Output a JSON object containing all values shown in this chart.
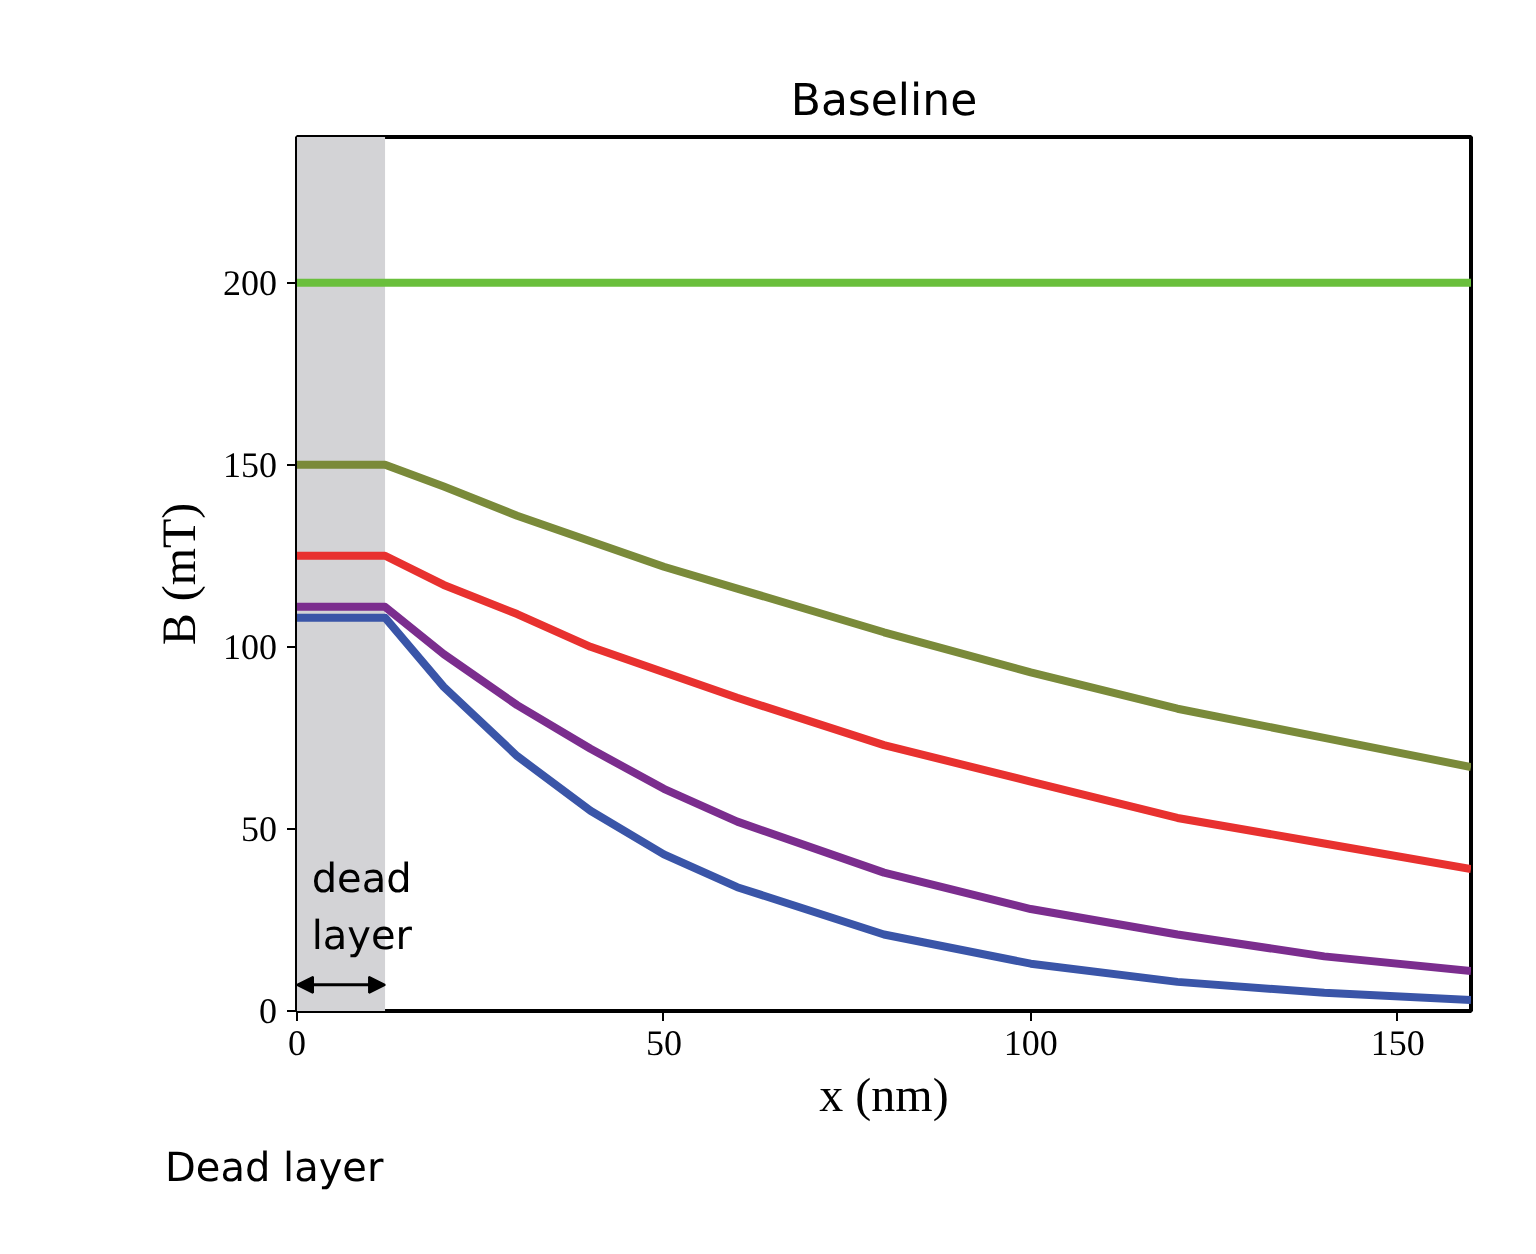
{
  "chart_data": {
    "type": "line",
    "title": "Baseline",
    "xlabel": "x (nm)",
    "ylabel": "B (mT)",
    "x": [
      0,
      12,
      20,
      30,
      40,
      50,
      60,
      80,
      100,
      120,
      140,
      160
    ],
    "series": [
      {
        "color": "#6abf3c",
        "values": [
          200,
          200,
          200,
          200,
          200,
          200,
          200,
          200,
          200,
          200,
          200,
          200
        ]
      },
      {
        "color": "#7a8a3a",
        "values": [
          150,
          150,
          144,
          136,
          129,
          122,
          116,
          104,
          93,
          83,
          75,
          67
        ]
      },
      {
        "color": "#e8312f",
        "values": [
          125,
          125,
          117,
          109,
          100,
          93,
          86,
          73,
          63,
          53,
          46,
          39
        ]
      },
      {
        "color": "#7b2d8e",
        "values": [
          111,
          111,
          98,
          84,
          72,
          61,
          52,
          38,
          28,
          21,
          15,
          11
        ]
      },
      {
        "color": "#3a55a8",
        "values": [
          108,
          108,
          89,
          70,
          55,
          43,
          34,
          21,
          13,
          8,
          5,
          3
        ]
      }
    ],
    "xlim": [
      0,
      160
    ],
    "xticks": [
      0,
      50,
      100,
      150
    ],
    "ylim": [
      0,
      240
    ],
    "yticks": [
      0,
      50,
      100,
      150,
      200
    ],
    "grid": false,
    "marker": "none",
    "line_style": "solid",
    "bands": [
      {
        "axis": "x",
        "from": 0,
        "to": 12,
        "label": "dead layer",
        "color": "#d3d3d6"
      }
    ],
    "annotations": [
      "Dead layer"
    ]
  }
}
